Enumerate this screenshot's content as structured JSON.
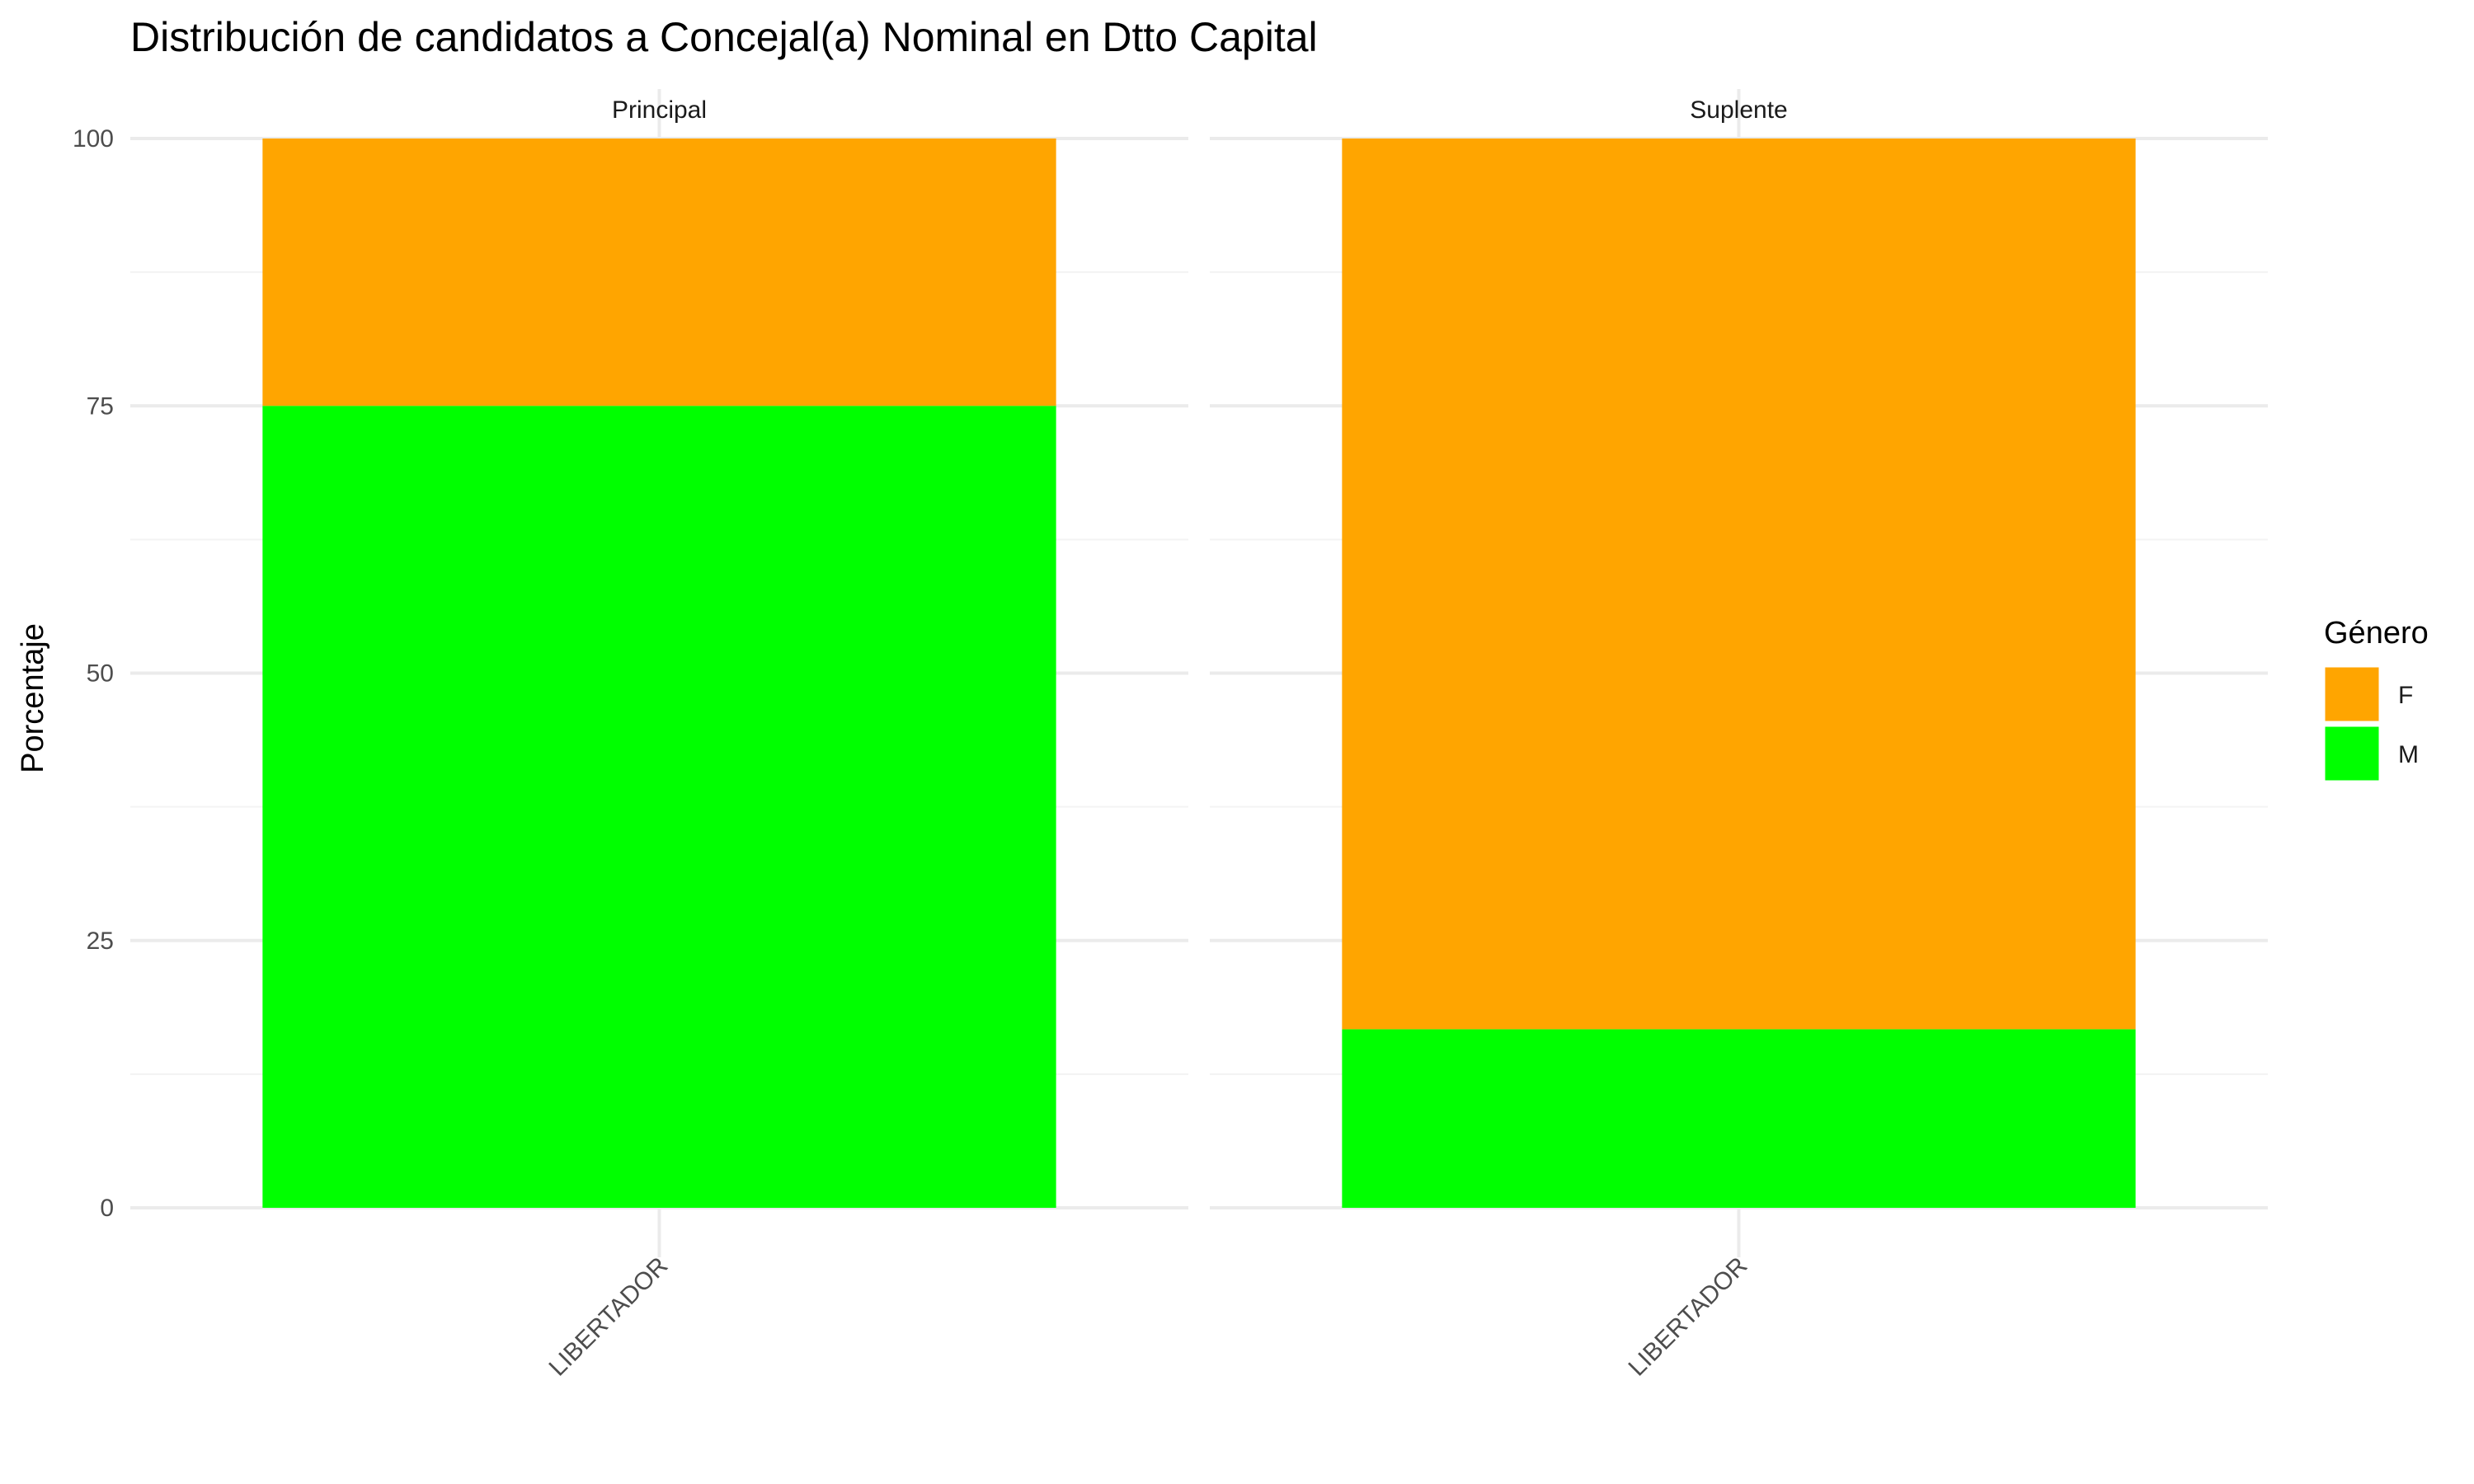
{
  "chart_data": {
    "type": "bar",
    "stacked": true,
    "title": "Distribución de candidatos a Concejal(a) Nominal en Dtto Capital",
    "ylabel": "Porcentaje",
    "xlabel": "",
    "ylim": [
      0,
      100
    ],
    "yticks": [
      "0",
      "25",
      "50",
      "75",
      "100"
    ],
    "legend": {
      "title": "Género",
      "placement": "right",
      "entries": [
        {
          "label": "F",
          "color": "#FFA500"
        },
        {
          "label": "M",
          "color": "#00FF00"
        }
      ]
    },
    "panels": [
      {
        "label": "Principal",
        "categories": [
          "LIBERTADOR"
        ],
        "series": [
          {
            "name": "M",
            "color": "#00FF00",
            "values": [
              75
            ]
          },
          {
            "name": "F",
            "color": "#FFA500",
            "values": [
              25
            ]
          }
        ]
      },
      {
        "label": "Suplente",
        "categories": [
          "LIBERTADOR"
        ],
        "series": [
          {
            "name": "M",
            "color": "#00FF00",
            "values": [
              16.7
            ]
          },
          {
            "name": "F",
            "color": "#FFA500",
            "values": [
              83.3
            ]
          }
        ]
      }
    ]
  }
}
